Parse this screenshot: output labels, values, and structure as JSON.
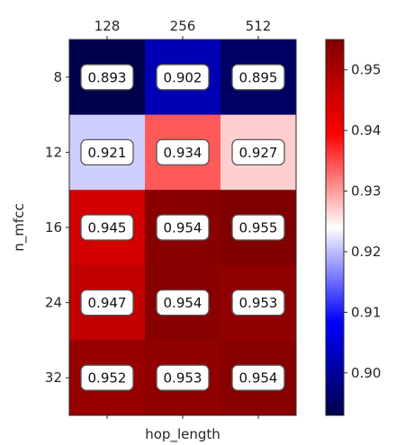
{
  "chart_data": {
    "type": "heatmap",
    "title": "",
    "xlabel": "hop_length",
    "ylabel": "n_mfcc",
    "x_categories": [
      "128",
      "256",
      "512"
    ],
    "y_categories": [
      "8",
      "12",
      "16",
      "24",
      "32"
    ],
    "x_ticks_position": "top",
    "values": [
      [
        0.893,
        0.902,
        0.895
      ],
      [
        0.921,
        0.934,
        0.927
      ],
      [
        0.945,
        0.954,
        0.955
      ],
      [
        0.947,
        0.954,
        0.953
      ],
      [
        0.952,
        0.953,
        0.954
      ]
    ],
    "annotations": [
      [
        "0.893",
        "0.902",
        "0.895"
      ],
      [
        "0.921",
        "0.934",
        "0.927"
      ],
      [
        "0.945",
        "0.954",
        "0.955"
      ],
      [
        "0.947",
        "0.954",
        "0.953"
      ],
      [
        "0.952",
        "0.953",
        "0.954"
      ]
    ],
    "colormap": "seismic",
    "colorbar": {
      "vmin": 0.893,
      "vmax": 0.955,
      "ticks": [
        0.9,
        0.91,
        0.92,
        0.93,
        0.94,
        0.95
      ],
      "tick_labels": [
        "0.90",
        "0.91",
        "0.92",
        "0.93",
        "0.94",
        "0.95"
      ],
      "placement": "right"
    },
    "colors": {
      "low": "#00004c",
      "mid": "#ffffff",
      "high": "#800000"
    }
  }
}
